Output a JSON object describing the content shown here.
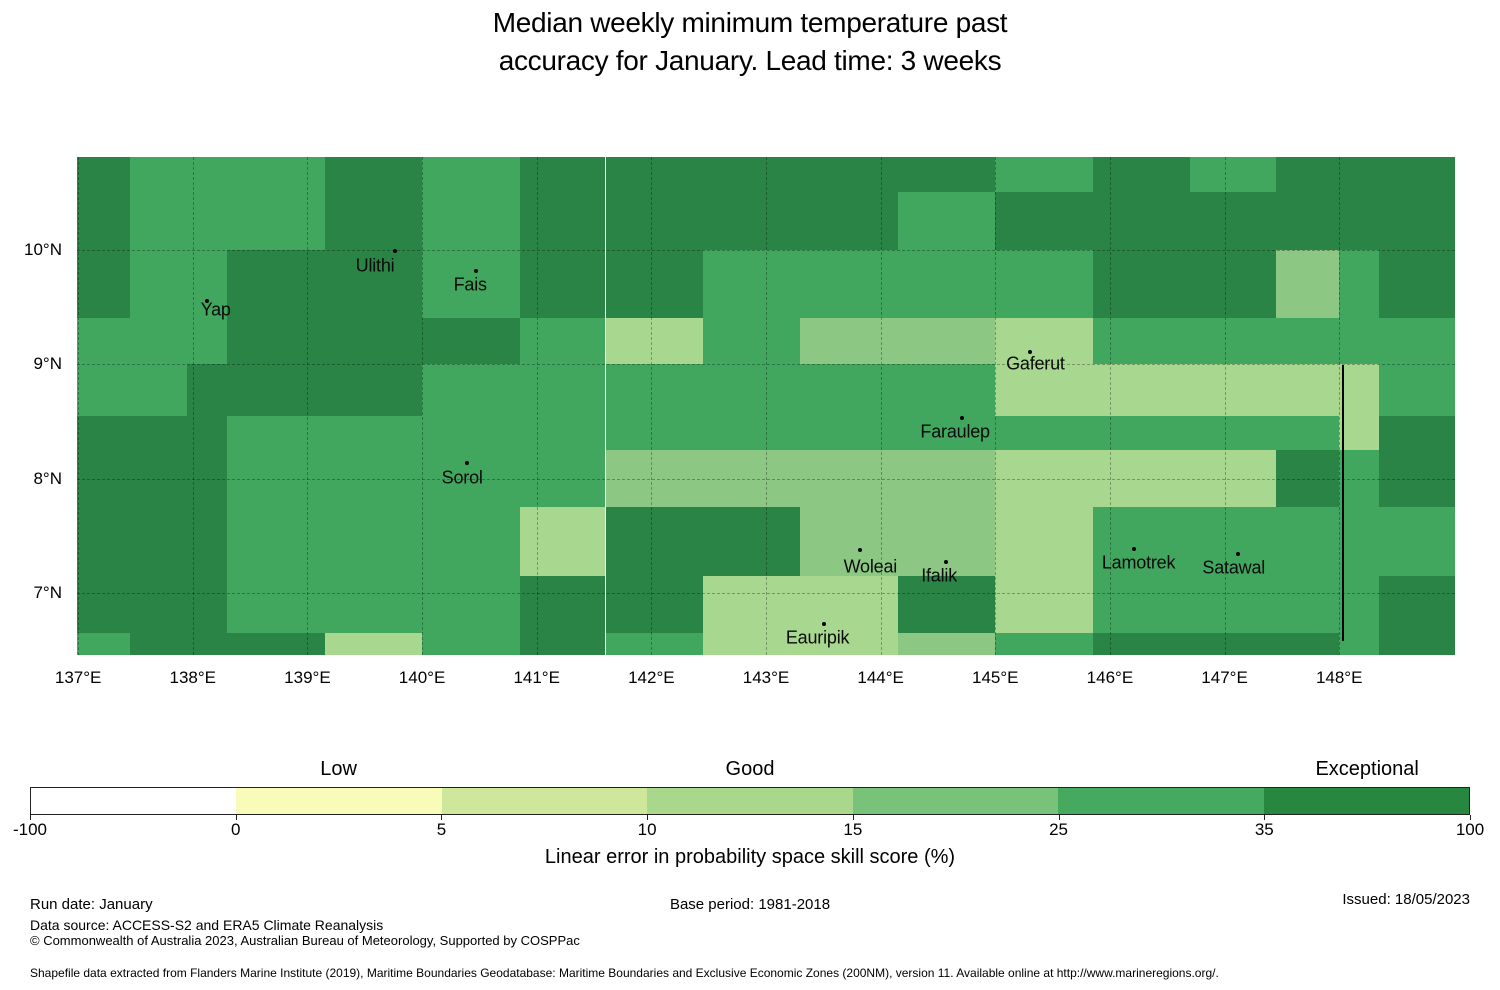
{
  "title": {
    "line1": "Median weekly minimum temperature past",
    "line2": "accuracy for January. Lead time: 3 weeks"
  },
  "chart_data": {
    "type": "heatmap",
    "title": "Median weekly minimum temperature past accuracy for January. Lead time: 3 weeks",
    "lon_range": [
      136.99,
      149.01
    ],
    "lat_range": [
      10.81,
      6.46
    ],
    "grid": true,
    "x_ticks": [
      {
        "v": 137,
        "label": "137°E"
      },
      {
        "v": 138,
        "label": "138°E"
      },
      {
        "v": 139,
        "label": "139°E"
      },
      {
        "v": 140,
        "label": "140°E"
      },
      {
        "v": 141,
        "label": "141°E"
      },
      {
        "v": 142,
        "label": "142°E"
      },
      {
        "v": 143,
        "label": "143°E"
      },
      {
        "v": 144,
        "label": "144°E"
      },
      {
        "v": 145,
        "label": "145°E"
      },
      {
        "v": 146,
        "label": "146°E"
      },
      {
        "v": 147,
        "label": "147°E"
      },
      {
        "v": 148,
        "label": "148°E"
      }
    ],
    "y_ticks": [
      {
        "v": 10,
        "label": "10°N"
      },
      {
        "v": 9,
        "label": "9°N"
      },
      {
        "v": 8,
        "label": "8°N"
      },
      {
        "v": 7,
        "label": "7°N"
      }
    ],
    "palette": {
      "D": "#2a8446",
      "M": "#41a75f",
      "G": "#8cc883",
      "L": "#a8d88f"
    },
    "palette_meaning": {
      "D": "skill 35-100 %",
      "M": "skill 25-35 %",
      "G": "skill 15-25 %",
      "L": "skill 10-15 %"
    },
    "lon_edges": [
      136.99,
      137.45,
      137.95,
      138.3,
      139.15,
      140.0,
      140.85,
      141.6,
      142.45,
      143.3,
      144.15,
      145.0,
      145.85,
      146.7,
      147.45,
      148.0,
      148.35,
      149.01
    ],
    "lat_edges": [
      10.81,
      10.5,
      10.0,
      9.4,
      9.0,
      8.55,
      8.25,
      7.75,
      7.15,
      6.65,
      6.46
    ],
    "matrix": [
      "DMMMDMDDDDDMDMDDD",
      "DMMMDMDDDDMDDDDDD",
      "DMMDDMDDMMMMDDGMD",
      "MMMDDDMLMGGLMMMMM",
      "MMDDDMMMMMMLLLLLM",
      "DDDMMMMMMMMMMMMLD",
      "DDDMMMMGGGGLLLDMD",
      "DDDMMMLDDGGLMMMMM",
      "DDDMMMDDLLDLMMMMD",
      "MDDDLMDMLLGMDDDMD"
    ],
    "boundary_line": {
      "lon": 148.02,
      "lat_top": 8.99,
      "lat_bottom": 6.58
    },
    "islands": [
      {
        "name": "Yap",
        "label_lon": 138.2,
        "label_lat": 9.47,
        "dot_lon": 138.12,
        "dot_lat": 9.55
      },
      {
        "name": "Ulithi",
        "label_lon": 139.59,
        "label_lat": 9.86,
        "dot_lon": 139.76,
        "dot_lat": 9.99
      },
      {
        "name": "Fais",
        "label_lon": 140.42,
        "label_lat": 9.69,
        "dot_lon": 140.47,
        "dot_lat": 9.81
      },
      {
        "name": "Gaferut",
        "label_lon": 145.35,
        "label_lat": 9.0,
        "dot_lon": 145.3,
        "dot_lat": 9.11
      },
      {
        "name": "Faraulep",
        "label_lon": 144.65,
        "label_lat": 8.41,
        "dot_lon": 144.71,
        "dot_lat": 8.53
      },
      {
        "name": "Sorol",
        "label_lon": 140.35,
        "label_lat": 8.01,
        "dot_lon": 140.39,
        "dot_lat": 8.14
      },
      {
        "name": "Woleai",
        "label_lon": 143.91,
        "label_lat": 7.23,
        "dot_lon": 143.82,
        "dot_lat": 7.38
      },
      {
        "name": "Ifalik",
        "label_lon": 144.51,
        "label_lat": 7.15,
        "dot_lon": 144.57,
        "dot_lat": 7.27
      },
      {
        "name": "Lamotrek",
        "label_lon": 146.25,
        "label_lat": 7.26,
        "dot_lon": 146.21,
        "dot_lat": 7.39
      },
      {
        "name": "Satawal",
        "label_lon": 147.08,
        "label_lat": 7.22,
        "dot_lon": 147.12,
        "dot_lat": 7.34
      },
      {
        "name": "Eauripik",
        "label_lon": 143.45,
        "label_lat": 6.61,
        "dot_lon": 143.51,
        "dot_lat": 6.73
      }
    ]
  },
  "colorbar": {
    "segments": [
      {
        "color": "#ffffff"
      },
      {
        "color": "#f9fbb9"
      },
      {
        "color": "#cfe79a"
      },
      {
        "color": "#a9d78b"
      },
      {
        "color": "#78c27a"
      },
      {
        "color": "#45aa60"
      },
      {
        "color": "#27873f"
      }
    ],
    "tick_labels": [
      "-100",
      "0",
      "5",
      "10",
      "15",
      "25",
      "35",
      "100"
    ],
    "categories": [
      {
        "label": "Low",
        "segment": 1
      },
      {
        "label": "Good",
        "segment": 3
      },
      {
        "label": "Exceptional",
        "segment": 6
      }
    ],
    "axis_label": "Linear error in probability space skill score (%)"
  },
  "footer": {
    "run_date": "Run date: January",
    "base_period": "Base period: 1981-2018",
    "issued": "Issued: 18/05/2023",
    "data_source": "Data source: ACCESS-S2 and ERA5 Climate Reanalysis",
    "copyright": "© Commonwealth of Australia 2023, Australian Bureau of Meteorology, Supported by COSPPac",
    "shapefile": "Shapefile data extracted from Flanders Marine Institute (2019), Maritime Boundaries Geodatabase: Maritime Boundaries and Exclusive Economic Zones (200NM), version 11. Available online at http://www.marineregions.org/."
  }
}
